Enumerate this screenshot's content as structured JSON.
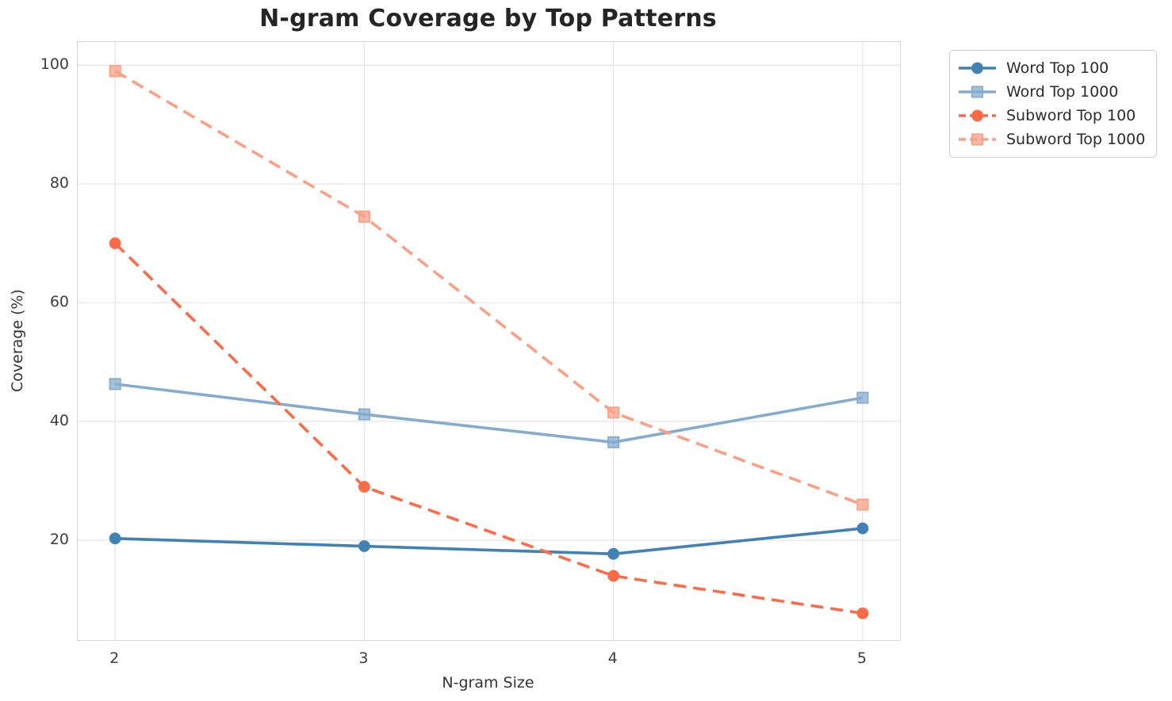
{
  "chart_data": {
    "type": "line",
    "title": "N-gram Coverage by Top Patterns",
    "xlabel": "N-gram Size",
    "ylabel": "Coverage (%)",
    "x": [
      2,
      3,
      4,
      5
    ],
    "xticks": [
      2,
      3,
      4,
      5
    ],
    "yticks": [
      20,
      40,
      60,
      80,
      100
    ],
    "xlim": [
      1.85,
      5.15
    ],
    "ylim": [
      3.2,
      103.9
    ],
    "grid": true,
    "legend_position": "upper right outside plot",
    "series": [
      {
        "name": "Word Top 100",
        "values": [
          20.3,
          19.0,
          17.7,
          22.0
        ],
        "color": "#4181b4",
        "marker": "circle",
        "line_style": "solid"
      },
      {
        "name": "Word Top 1000",
        "values": [
          46.3,
          41.2,
          36.5,
          44.0
        ],
        "color": "#85accf",
        "marker": "square",
        "line_style": "solid"
      },
      {
        "name": "Subword Top 100",
        "values": [
          70.0,
          29.0,
          14.0,
          7.7
        ],
        "color": "#fb6b48",
        "marker": "circle",
        "line_style": "dashed"
      },
      {
        "name": "Subword Top 1000",
        "values": [
          99.0,
          74.5,
          41.5,
          26.0
        ],
        "color": "#fba085",
        "marker": "square",
        "line_style": "dashed"
      }
    ],
    "style": {
      "grid_color": "#e8e8e8",
      "spine_color": "#d6d6d6",
      "title_color": "#252525",
      "tick_color": "#3d3d3d",
      "line_width": 3.6,
      "dash_pattern": "16 9"
    }
  }
}
